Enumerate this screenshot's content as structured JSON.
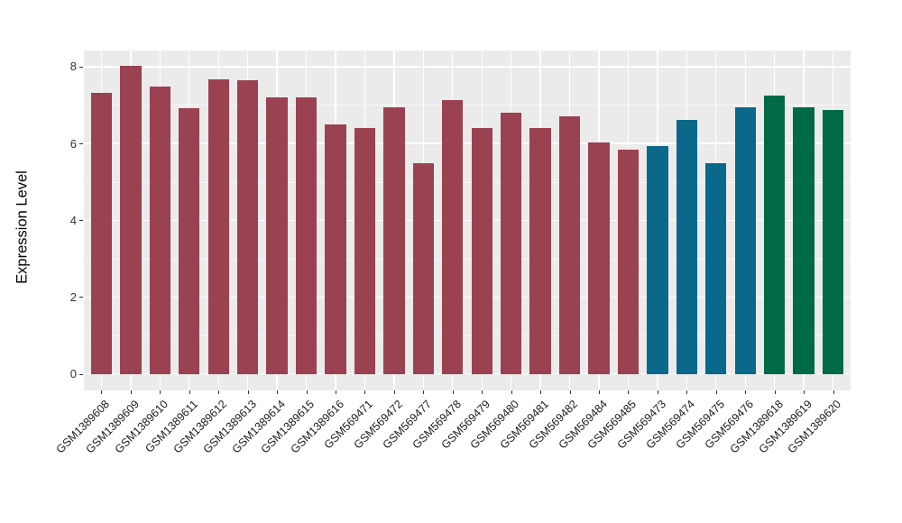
{
  "chart_data": {
    "type": "bar",
    "title": "",
    "ylabel": "Expression Level",
    "xlabel": "",
    "yticks": [
      0,
      2,
      4,
      6,
      8
    ],
    "minor_yticks": [
      1,
      3,
      5,
      7
    ],
    "ylim": [
      -0.43,
      8.42
    ],
    "grid": "on",
    "legend_position": "none",
    "panel_background": "#EBEBEB",
    "grid_color": "#FFFFFF",
    "tick_color": "#333333",
    "categories": [
      "GSM1389608",
      "GSM1389609",
      "GSM1389610",
      "GSM1389611",
      "GSM1389612",
      "GSM1389613",
      "GSM1389614",
      "GSM1389615",
      "GSM1389616",
      "GSM569471",
      "GSM569472",
      "GSM569477",
      "GSM569478",
      "GSM569479",
      "GSM569480",
      "GSM569481",
      "GSM569482",
      "GSM569484",
      "GSM569485",
      "GSM569473",
      "GSM569474",
      "GSM569475",
      "GSM569476",
      "GSM1389618",
      "GSM1389619",
      "GSM1389620"
    ],
    "values": [
      7.32,
      8.01,
      7.47,
      6.92,
      7.68,
      7.64,
      7.19,
      7.21,
      6.5,
      6.4,
      6.93,
      5.49,
      7.13,
      6.41,
      6.79,
      6.41,
      6.71,
      6.03,
      5.84,
      5.92,
      6.61,
      5.48,
      6.94,
      7.24,
      6.94,
      6.88
    ],
    "color_index": [
      0,
      0,
      0,
      0,
      0,
      0,
      0,
      0,
      0,
      0,
      0,
      0,
      0,
      0,
      0,
      0,
      0,
      0,
      0,
      1,
      1,
      1,
      1,
      2,
      2,
      2
    ],
    "palette": [
      "#9A4152",
      "#0A688A",
      "#006946"
    ]
  }
}
